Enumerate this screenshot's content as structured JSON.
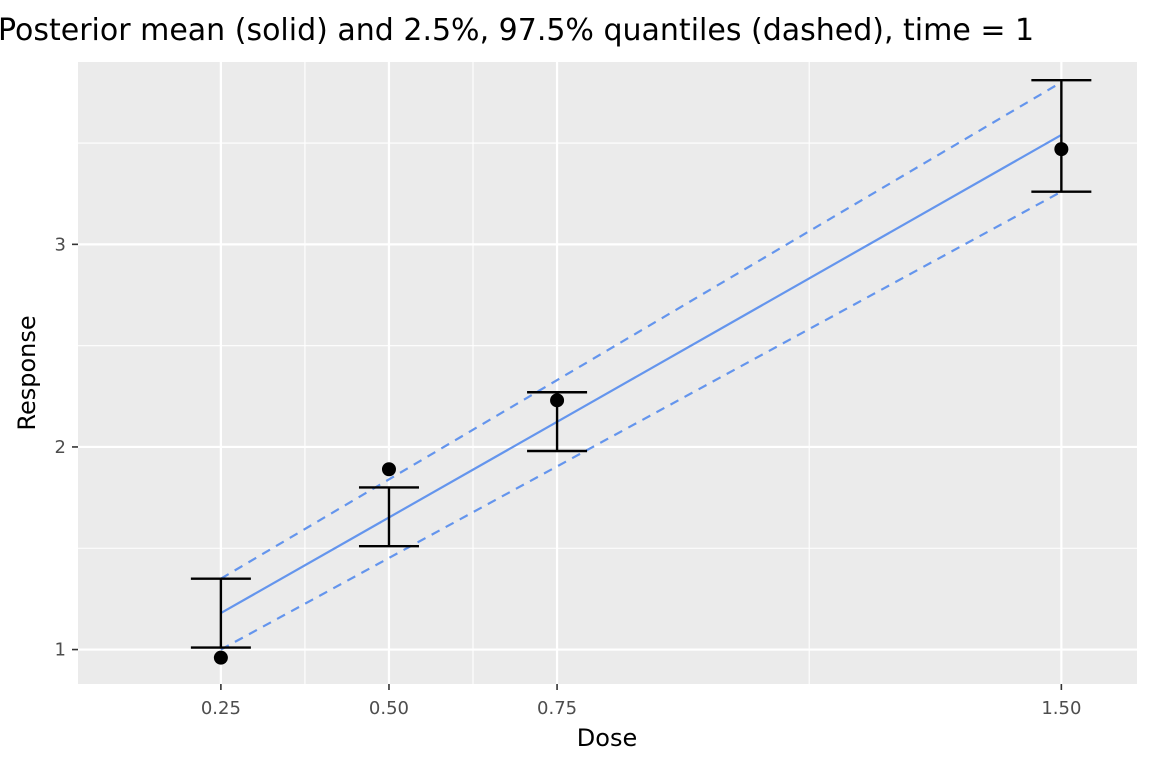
{
  "chart_data": {
    "type": "scatter",
    "title": "Posterior mean (solid) and 2.5%, 97.5% quantiles (dashed), time = 1",
    "xlabel": "Dose",
    "ylabel": "Response",
    "xlim": [
      0.0375,
      1.6125
    ],
    "ylim": [
      0.83,
      3.9
    ],
    "x_ticks": [
      {
        "value": 0.25,
        "label": "0.25"
      },
      {
        "value": 0.5,
        "label": "0.50"
      },
      {
        "value": 0.75,
        "label": "0.75"
      },
      {
        "value": 1.5,
        "label": "1.50"
      }
    ],
    "y_ticks": [
      {
        "value": 1,
        "label": "1"
      },
      {
        "value": 2,
        "label": "2"
      },
      {
        "value": 3,
        "label": "3"
      }
    ],
    "x_minor": [
      0.375,
      0.625,
      1.125
    ],
    "y_minor": [
      1.5,
      2.5,
      3.5
    ],
    "grid": true,
    "legend": "none",
    "observed_points": {
      "x": [
        0.25,
        0.5,
        0.75,
        1.5
      ],
      "y": [
        0.96,
        1.89,
        2.23,
        3.47
      ]
    },
    "error_bars": {
      "x": [
        0.25,
        0.5,
        0.75,
        1.5
      ],
      "lower": [
        1.01,
        1.51,
        1.98,
        3.26
      ],
      "upper": [
        1.35,
        1.8,
        2.27,
        3.81
      ]
    },
    "posterior_mean": {
      "x": [
        0.25,
        1.5
      ],
      "y": [
        1.18,
        3.54
      ]
    },
    "quantile_lower": {
      "x": [
        0.25,
        1.5
      ],
      "y": [
        1.0,
        3.26
      ]
    },
    "quantile_upper": {
      "x": [
        0.25,
        1.5
      ],
      "y": [
        1.35,
        3.8
      ]
    },
    "colors": {
      "panel": "#ebebeb",
      "grid": "#ffffff",
      "fit_line": "#6495ed",
      "points": "#000000"
    }
  }
}
